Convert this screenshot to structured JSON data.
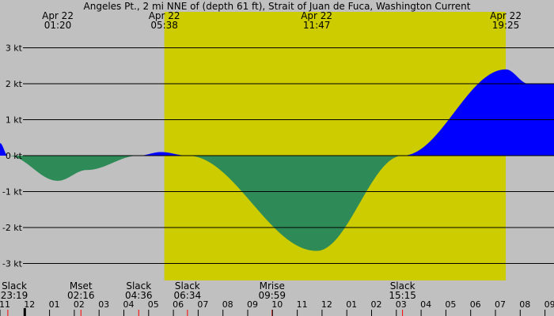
{
  "colors": {
    "background": "#c0c0c0",
    "daylight": "#cccc00",
    "flood": "#0000ff",
    "ebb": "#2e8b57",
    "grid": "#000000",
    "tick_red": "#ff0000"
  },
  "chart_data": {
    "type": "area",
    "title": "Angeles Pt., 2 mi NNE of (depth 61 ft), Strait of Juan de Fuca, Washington Current",
    "units": "kt",
    "time_start": "Apr 21 23:00",
    "ylim": [
      -3.5,
      3.5
    ],
    "yticks": [
      {
        "value": 3,
        "label": "3 kt"
      },
      {
        "value": 2,
        "label": "2 kt"
      },
      {
        "value": 1,
        "label": "1 kt"
      },
      {
        "value": 0,
        "label": "0 kt"
      },
      {
        "value": -1,
        "label": "-1 kt"
      },
      {
        "value": -2,
        "label": "-2 kt"
      },
      {
        "value": -3,
        "label": "-3 kt"
      }
    ],
    "daylight": {
      "start": "05:38",
      "end": "19:25"
    },
    "top_labels": [
      {
        "date": "Apr 22",
        "time": "01:20"
      },
      {
        "date": "Apr 22",
        "time": "05:38"
      },
      {
        "date": "Apr 22",
        "time": "11:47"
      },
      {
        "date": "Apr 22",
        "time": "19:25"
      }
    ],
    "series": [
      {
        "points": [
          {
            "t": "23:00",
            "v": 0.35
          },
          {
            "t": "23:19",
            "v": 0.0
          },
          {
            "t": "01:20",
            "v": -0.7
          },
          {
            "t": "02:30",
            "v": -0.4
          },
          {
            "t": "04:36",
            "v": 0.0
          },
          {
            "t": "05:30",
            "v": 0.1
          },
          {
            "t": "06:34",
            "v": 0.0
          },
          {
            "t": "11:47",
            "v": -2.65
          },
          {
            "t": "15:15",
            "v": 0.0
          },
          {
            "t": "19:25",
            "v": 2.4
          },
          {
            "t": "20:20",
            "v": 2.0
          }
        ]
      }
    ],
    "events": [
      {
        "label": "Slack",
        "time": "23:19"
      },
      {
        "label": "Mset",
        "time": "02:16"
      },
      {
        "label": "Slack",
        "time": "04:36"
      },
      {
        "label": "Slack",
        "time": "06:34"
      },
      {
        "label": "Mrise",
        "time": "09:59"
      },
      {
        "label": "Slack",
        "time": "15:15"
      }
    ],
    "hour_labels": [
      "11",
      "12",
      "01",
      "02",
      "03",
      "04",
      "05",
      "06",
      "07",
      "08",
      "09",
      "10",
      "11",
      "12",
      "01",
      "02",
      "03",
      "04",
      "05",
      "06",
      "07",
      "08",
      "09"
    ]
  }
}
